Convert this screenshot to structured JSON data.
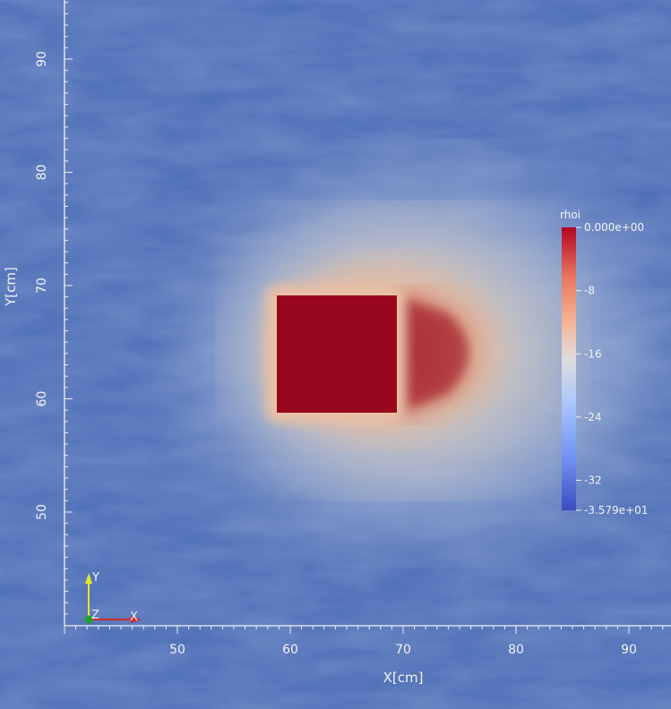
{
  "chart_data": {
    "type": "heatmap",
    "xlabel": "X[cm]",
    "ylabel": "Y[cm]",
    "xlim": [
      40,
      93
    ],
    "ylim": [
      41,
      96
    ],
    "x_ticks": [
      50,
      60,
      70,
      80,
      90
    ],
    "y_ticks": [
      50,
      60,
      70,
      80,
      90
    ],
    "field": {
      "name": "rhoi",
      "block": {
        "x": [
          59,
          70
        ],
        "y": [
          59,
          69
        ],
        "value": 0
      },
      "background_value": -30
    },
    "colorbar": {
      "title": "rhoi",
      "range": [
        -35.79,
        0
      ],
      "tick_values": [
        0,
        -8,
        -16,
        -24,
        -32,
        -35.79
      ],
      "tick_labels": [
        "0.000e+00",
        "-8",
        "-16",
        "-24",
        "-32",
        "-3.579e+01"
      ],
      "stops": [
        "#3b4cc0",
        "#6f91f2",
        "#aac7fd",
        "#dddddd",
        "#f6b698",
        "#e7745b",
        "#b40426"
      ]
    },
    "orientation_axes": {
      "labels": [
        "Y",
        "Z",
        "X"
      ]
    }
  }
}
